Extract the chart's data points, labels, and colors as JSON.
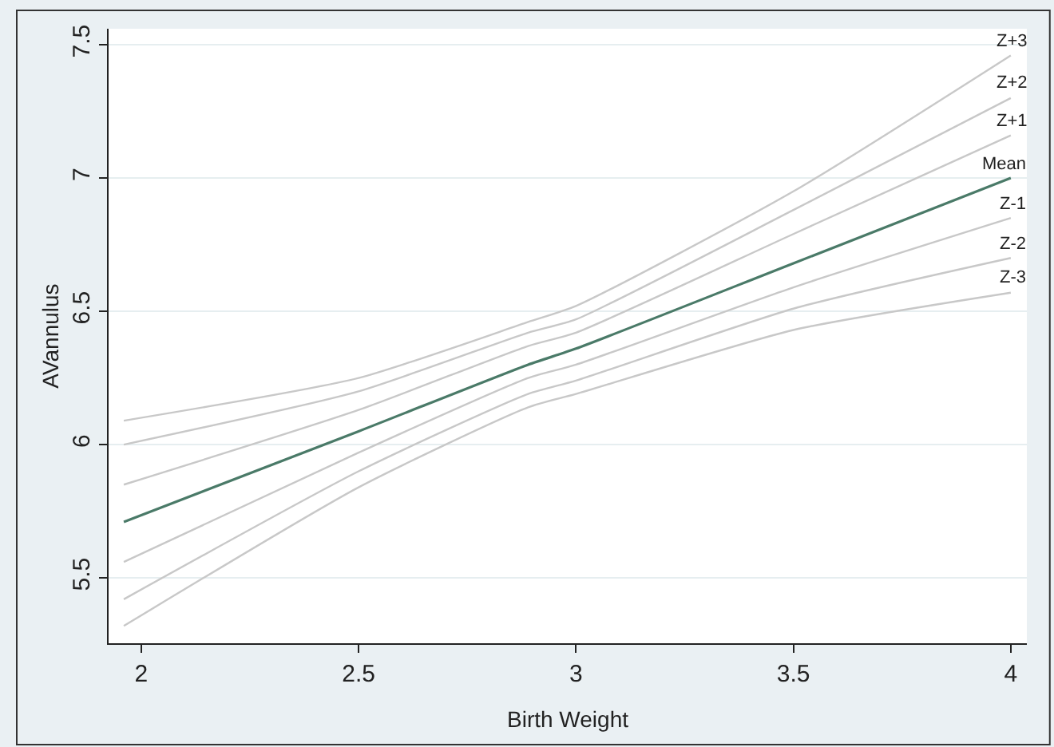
{
  "chart_data": {
    "type": "line",
    "xlabel": "Birth Weight",
    "ylabel": "AVannulus",
    "x": [
      1.96,
      2.5,
      2.89,
      3,
      3.5,
      4
    ],
    "series": [
      {
        "name": "Z+3",
        "color": "#c8c8c8",
        "values": [
          6.09,
          6.25,
          6.46,
          6.52,
          6.95,
          7.46
        ]
      },
      {
        "name": "Z+2",
        "color": "#c8c8c8",
        "values": [
          6.0,
          6.2,
          6.42,
          6.47,
          6.88,
          7.3
        ]
      },
      {
        "name": "Z+1",
        "color": "#c8c8c8",
        "values": [
          5.85,
          6.13,
          6.37,
          6.42,
          6.79,
          7.16
        ]
      },
      {
        "name": "Mean",
        "color": "#4a7a68",
        "values": [
          5.71,
          6.05,
          6.3,
          6.36,
          6.68,
          7.0
        ]
      },
      {
        "name": "Z-1",
        "color": "#c8c8c8",
        "values": [
          5.56,
          5.97,
          6.25,
          6.3,
          6.59,
          6.85
        ]
      },
      {
        "name": "Z-2",
        "color": "#c8c8c8",
        "values": [
          5.42,
          5.9,
          6.19,
          6.24,
          6.51,
          6.7
        ]
      },
      {
        "name": "Z-3",
        "color": "#c8c8c8",
        "values": [
          5.32,
          5.84,
          6.14,
          6.19,
          6.43,
          6.57
        ]
      }
    ],
    "xlim": [
      1.925,
      4.037
    ],
    "ylim": [
      5.255,
      7.56
    ],
    "xticks": [
      2,
      2.5,
      3,
      3.5,
      4
    ],
    "yticks": [
      5.5,
      6,
      6.5,
      7,
      7.5
    ],
    "grid": "y",
    "legend": false,
    "marker": "none",
    "line_style": "solid"
  }
}
